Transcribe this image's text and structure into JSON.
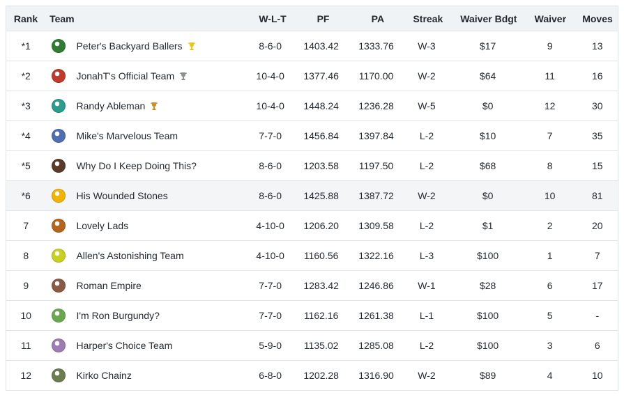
{
  "headers": {
    "rank": "Rank",
    "team": "Team",
    "wlt": "W-L-T",
    "pf": "PF",
    "pa": "PA",
    "streak": "Streak",
    "waiver_budget": "Waiver Bdgt",
    "waiver": "Waiver",
    "moves": "Moves"
  },
  "rows": [
    {
      "rank": "*1",
      "team": "Peter's Backyard Ballers",
      "trophy": "gold",
      "wlt": "8-6-0",
      "pf": "1403.42",
      "pa": "1333.76",
      "streak": "W-3",
      "waiver_budget": "$17",
      "waiver": "9",
      "moves": "13",
      "avatar_color": "#2e7d32"
    },
    {
      "rank": "*2",
      "team": "JonahT's Official Team",
      "trophy": "silver",
      "wlt": "10-4-0",
      "pf": "1377.46",
      "pa": "1170.00",
      "streak": "W-2",
      "waiver_budget": "$64",
      "waiver": "11",
      "moves": "16",
      "avatar_color": "#c0392b"
    },
    {
      "rank": "*3",
      "team": "Randy Ableman",
      "trophy": "bronze",
      "wlt": "10-4-0",
      "pf": "1448.24",
      "pa": "1236.28",
      "streak": "W-5",
      "waiver_budget": "$0",
      "waiver": "12",
      "moves": "30",
      "avatar_color": "#2a9d8f"
    },
    {
      "rank": "*4",
      "team": "Mike's Marvelous Team",
      "trophy": "",
      "wlt": "7-7-0",
      "pf": "1456.84",
      "pa": "1397.84",
      "streak": "L-2",
      "waiver_budget": "$10",
      "waiver": "7",
      "moves": "35",
      "avatar_color": "#4f6fb3"
    },
    {
      "rank": "*5",
      "team": "Why Do I Keep Doing This?",
      "trophy": "",
      "wlt": "8-6-0",
      "pf": "1203.58",
      "pa": "1197.50",
      "streak": "L-2",
      "waiver_budget": "$68",
      "waiver": "8",
      "moves": "15",
      "avatar_color": "#5b3a29"
    },
    {
      "rank": "*6",
      "team": "His Wounded Stones",
      "trophy": "",
      "wlt": "8-6-0",
      "pf": "1425.88",
      "pa": "1387.72",
      "streak": "W-2",
      "waiver_budget": "$0",
      "waiver": "10",
      "moves": "81",
      "avatar_color": "#f2b400"
    },
    {
      "rank": "7",
      "team": "Lovely Lads",
      "trophy": "",
      "wlt": "4-10-0",
      "pf": "1206.20",
      "pa": "1309.58",
      "streak": "L-2",
      "waiver_budget": "$1",
      "waiver": "2",
      "moves": "20",
      "avatar_color": "#b5651d"
    },
    {
      "rank": "8",
      "team": "Allen's Astonishing Team",
      "trophy": "",
      "wlt": "4-10-0",
      "pf": "1160.56",
      "pa": "1322.16",
      "streak": "L-3",
      "waiver_budget": "$100",
      "waiver": "1",
      "moves": "7",
      "avatar_color": "#c8d21e"
    },
    {
      "rank": "9",
      "team": "Roman Empire",
      "trophy": "",
      "wlt": "7-7-0",
      "pf": "1283.42",
      "pa": "1246.86",
      "streak": "W-1",
      "waiver_budget": "$28",
      "waiver": "6",
      "moves": "17",
      "avatar_color": "#8a5a44"
    },
    {
      "rank": "10",
      "team": "I'm Ron Burgundy?",
      "trophy": "",
      "wlt": "7-7-0",
      "pf": "1162.16",
      "pa": "1261.38",
      "streak": "L-1",
      "waiver_budget": "$100",
      "waiver": "5",
      "moves": "-",
      "avatar_color": "#6aa84f"
    },
    {
      "rank": "11",
      "team": "Harper's Choice Team",
      "trophy": "",
      "wlt": "5-9-0",
      "pf": "1135.02",
      "pa": "1285.08",
      "streak": "L-2",
      "waiver_budget": "$100",
      "waiver": "3",
      "moves": "6",
      "avatar_color": "#9e7bb5"
    },
    {
      "rank": "12",
      "team": "Kirko Chainz",
      "trophy": "",
      "wlt": "6-8-0",
      "pf": "1202.28",
      "pa": "1316.90",
      "streak": "W-2",
      "waiver_budget": "$89",
      "waiver": "4",
      "moves": "10",
      "avatar_color": "#6b7d4f"
    }
  ],
  "highlight_rank": "*6",
  "trophy_colors": {
    "gold": "#f2c511",
    "silver": "#8a8f94",
    "bronze": "#d08c2a"
  }
}
